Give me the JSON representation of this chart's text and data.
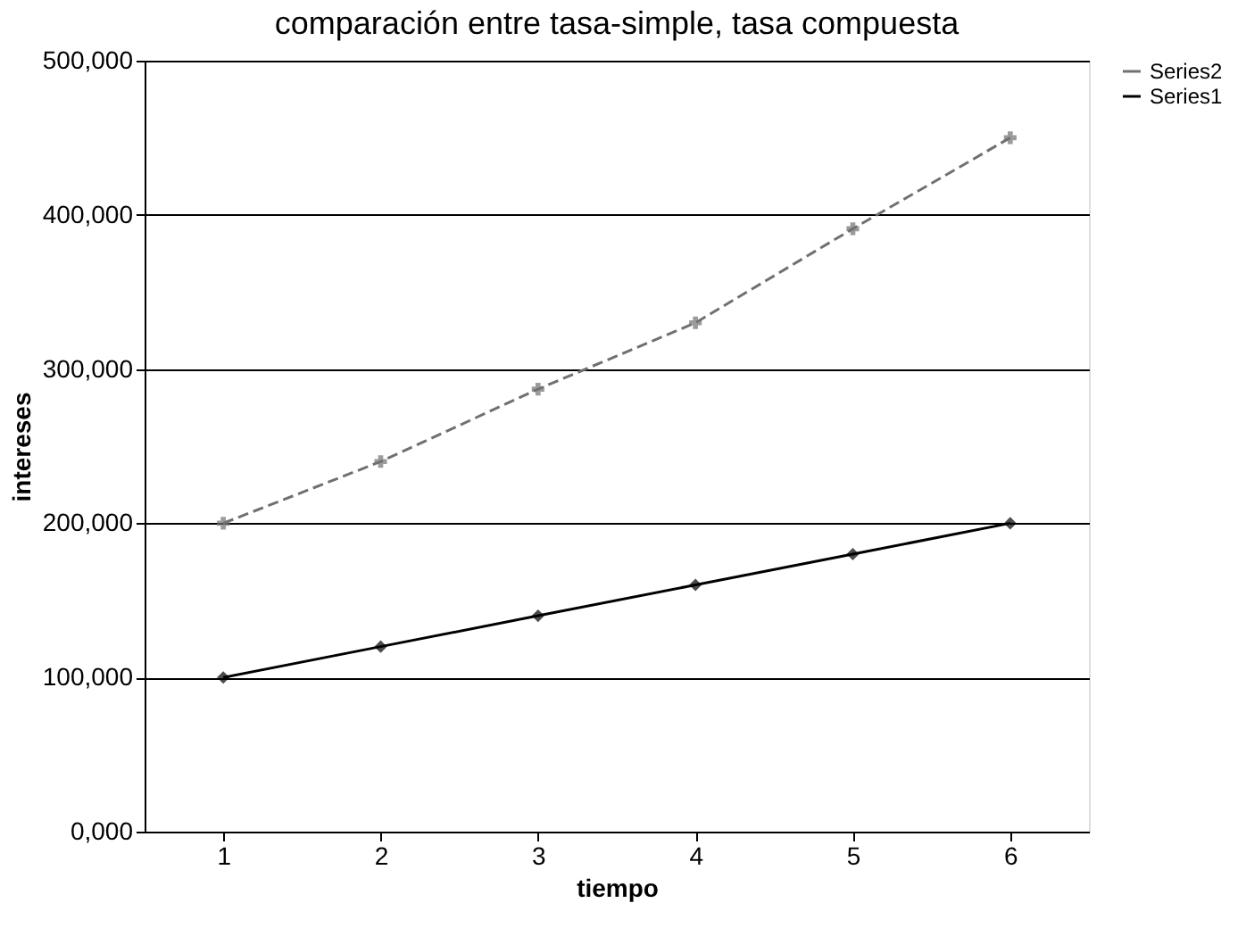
{
  "chart_data": {
    "type": "line",
    "title": "comparación  entre tasa-simple, tasa compuesta",
    "xlabel": "tiempo",
    "ylabel": "intereses",
    "categories": [
      "1",
      "2",
      "3",
      "4",
      "5",
      "6"
    ],
    "series": [
      {
        "name": "Series2",
        "color": "#707070",
        "marker": "cross",
        "line_style": "dashed",
        "values": [
          200000,
          240000,
          287000,
          330000,
          391000,
          450000
        ]
      },
      {
        "name": "Series1",
        "color": "#000000",
        "marker": "diamond",
        "line_style": "solid",
        "values": [
          100000,
          120000,
          140000,
          160000,
          180000,
          200000
        ]
      }
    ],
    "ylim": [
      0,
      500000
    ],
    "yticks": [
      {
        "value": 0,
        "label": "0,000"
      },
      {
        "value": 100000,
        "label": "100,000"
      },
      {
        "value": 200000,
        "label": "200,000"
      },
      {
        "value": 300000,
        "label": "300,000"
      },
      {
        "value": 400000,
        "label": "400,000"
      },
      {
        "value": 500000,
        "label": "500,000"
      }
    ],
    "grid": "y",
    "legend": "right"
  }
}
